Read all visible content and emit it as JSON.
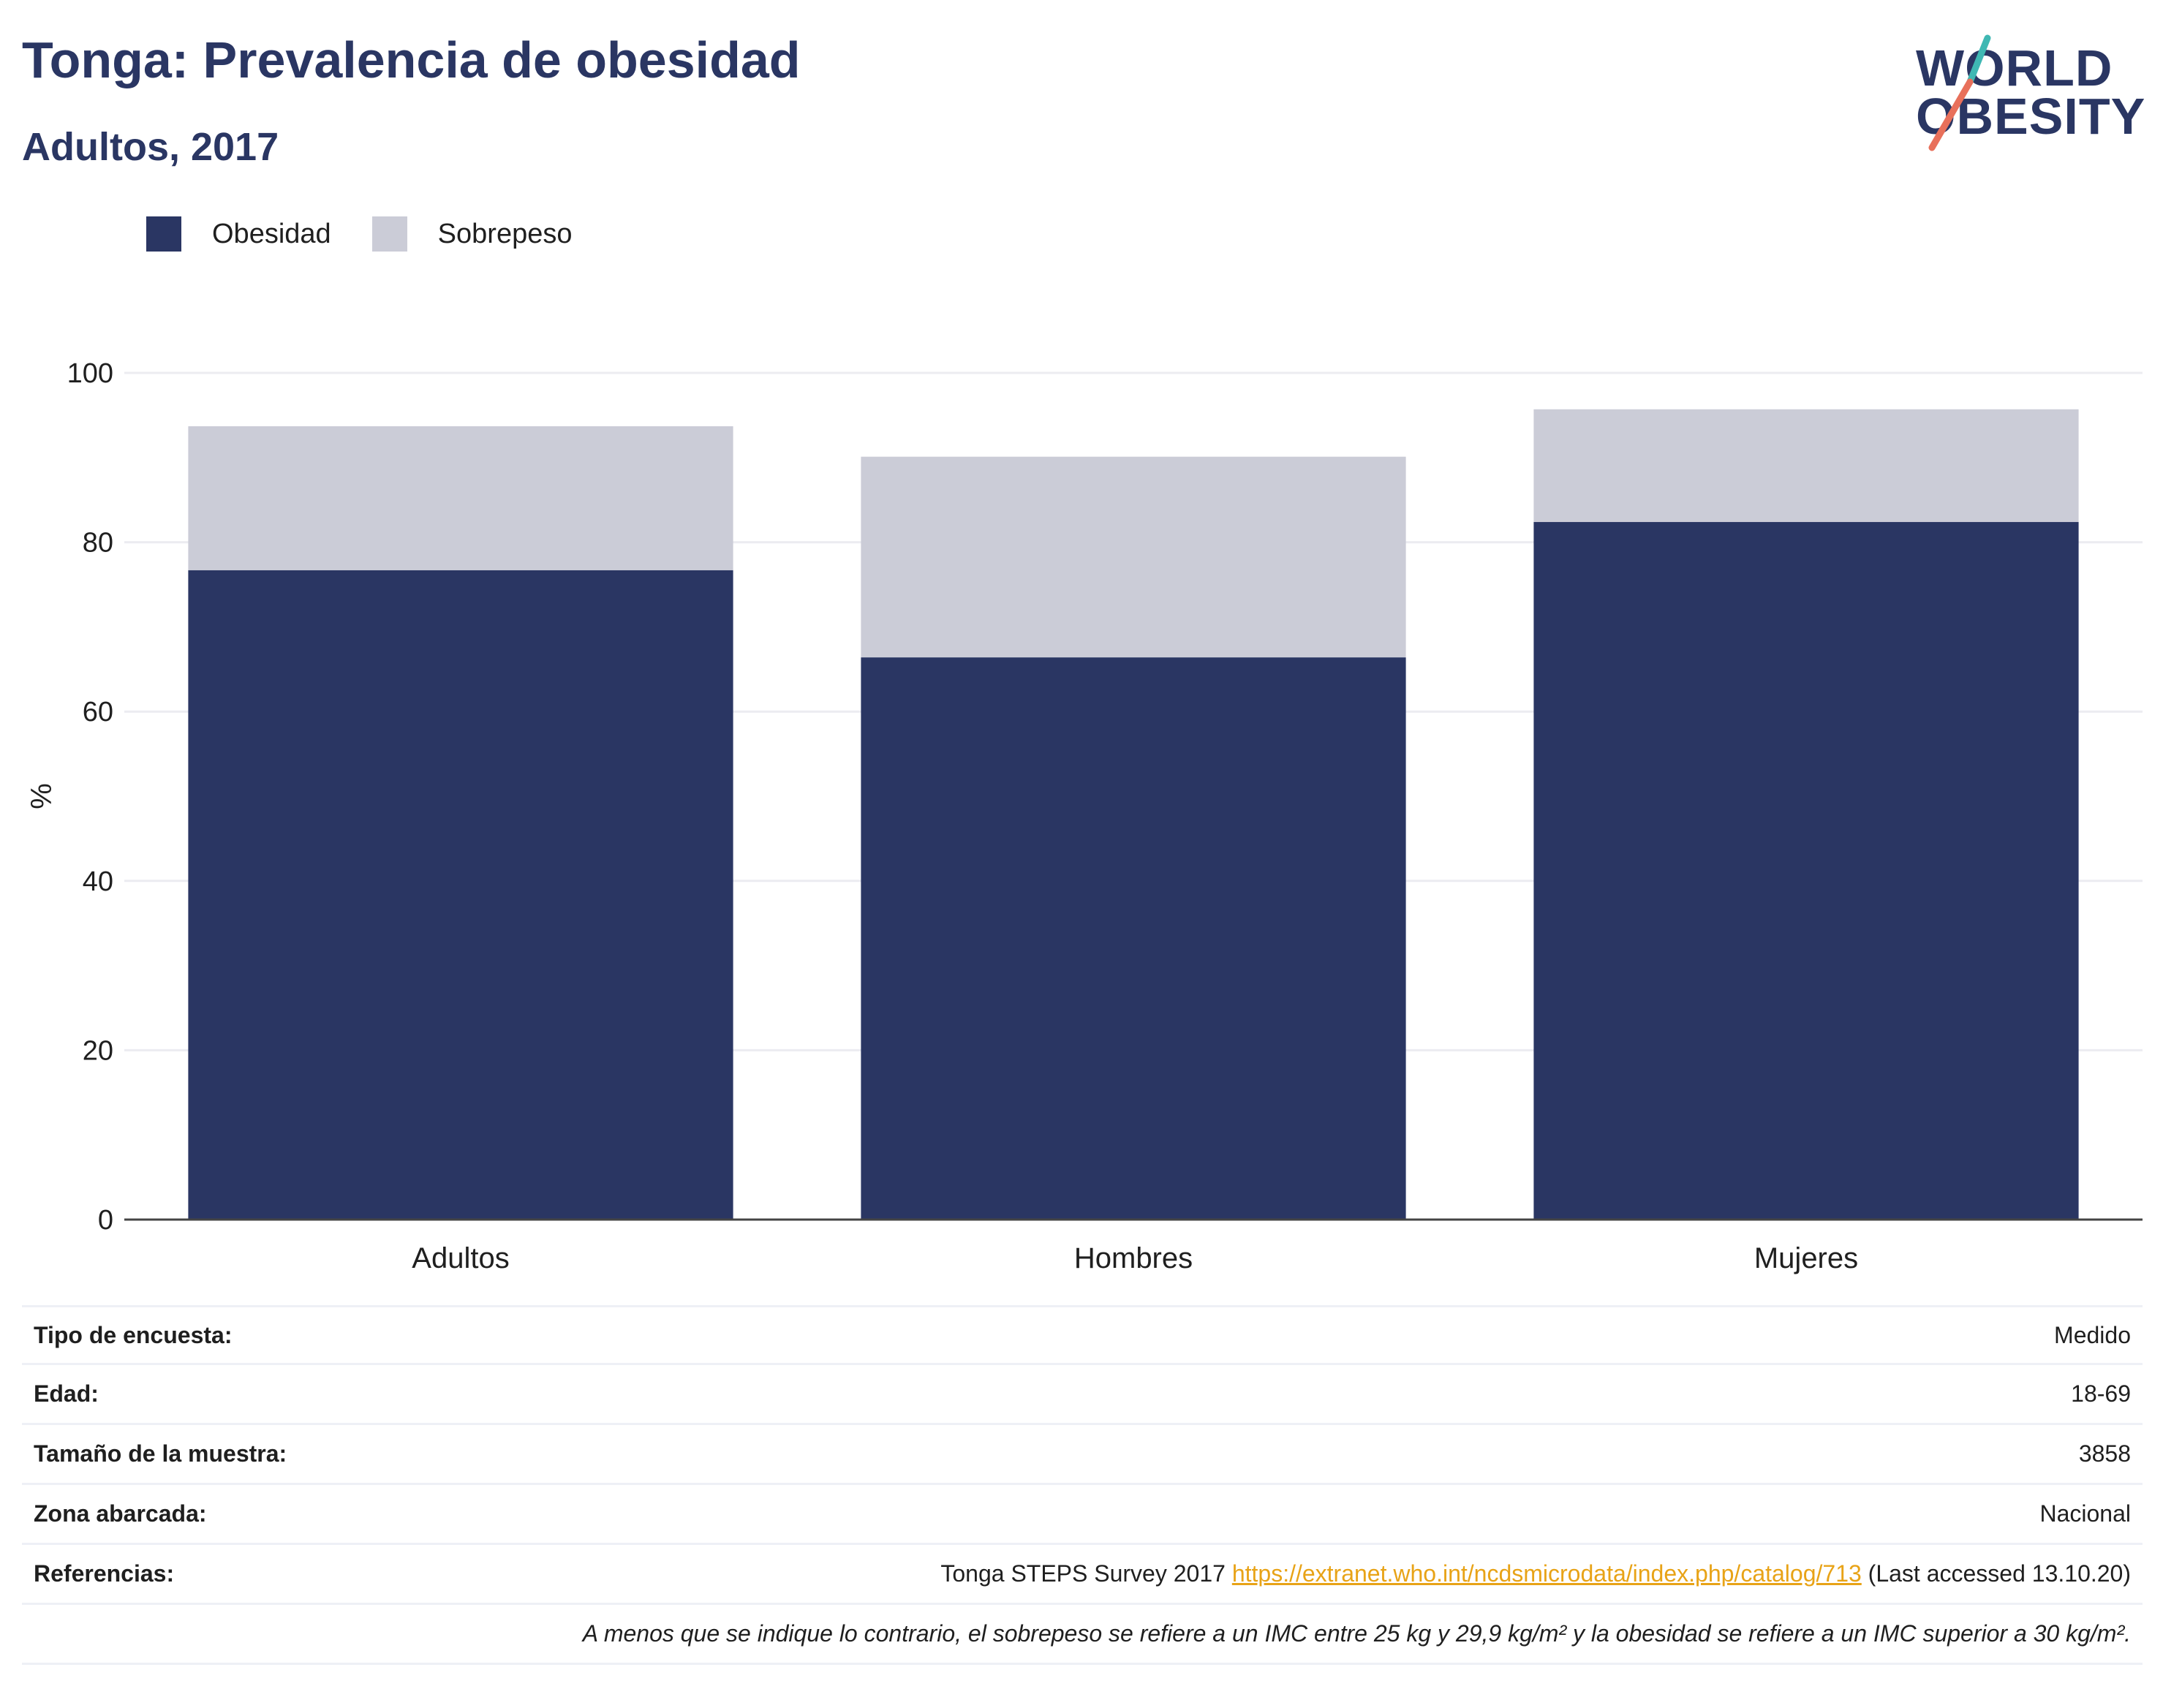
{
  "header": {
    "title": "Tonga: Prevalencia de obesidad",
    "subtitle": "Adultos, 2017"
  },
  "logo": {
    "line1": "WORLD",
    "line2": "OBESITY"
  },
  "colors": {
    "obesity": "#2a3663",
    "overweight": "#cbccd7",
    "accent_teal": "#3fb8b3",
    "accent_coral": "#e8705b",
    "link": "#e8a317"
  },
  "legend": [
    {
      "label": "Obesidad",
      "color": "#2a3663"
    },
    {
      "label": "Sobrepeso",
      "color": "#cbccd7"
    }
  ],
  "chart_data": {
    "type": "bar",
    "stacked": true,
    "categories": [
      "Adultos",
      "Hombres",
      "Mujeres"
    ],
    "series": [
      {
        "name": "Obesidad",
        "values": [
          76.7,
          66.4,
          82.4
        ]
      },
      {
        "name": "Sobrepeso",
        "values": [
          17.0,
          23.7,
          13.3
        ]
      }
    ],
    "ylabel": "%",
    "ylim": [
      0,
      100
    ],
    "yticks": [
      0,
      20,
      40,
      60,
      80,
      100
    ],
    "grid": true,
    "legend_position": "top-left"
  },
  "table": {
    "rows": [
      {
        "key": "Tipo de encuesta:",
        "value": "Medido"
      },
      {
        "key": "Edad:",
        "value": "18-69"
      },
      {
        "key": "Tamaño de la muestra:",
        "value": "3858"
      },
      {
        "key": "Zona abarcada:",
        "value": "Nacional"
      }
    ],
    "references": {
      "key": "Referencias:",
      "prefix": "Tonga STEPS Survey 2017 ",
      "link": "https://extranet.who.int/ncdsmicrodata/index.php/catalog/713",
      "suffix": " (Last accessed 13.10.20)"
    },
    "note": "A menos que se indique lo contrario, el sobrepeso se refiere a un IMC entre 25 kg y 29,9 kg/m² y la obesidad se refiere a un IMC superior a 30 kg/m²."
  }
}
